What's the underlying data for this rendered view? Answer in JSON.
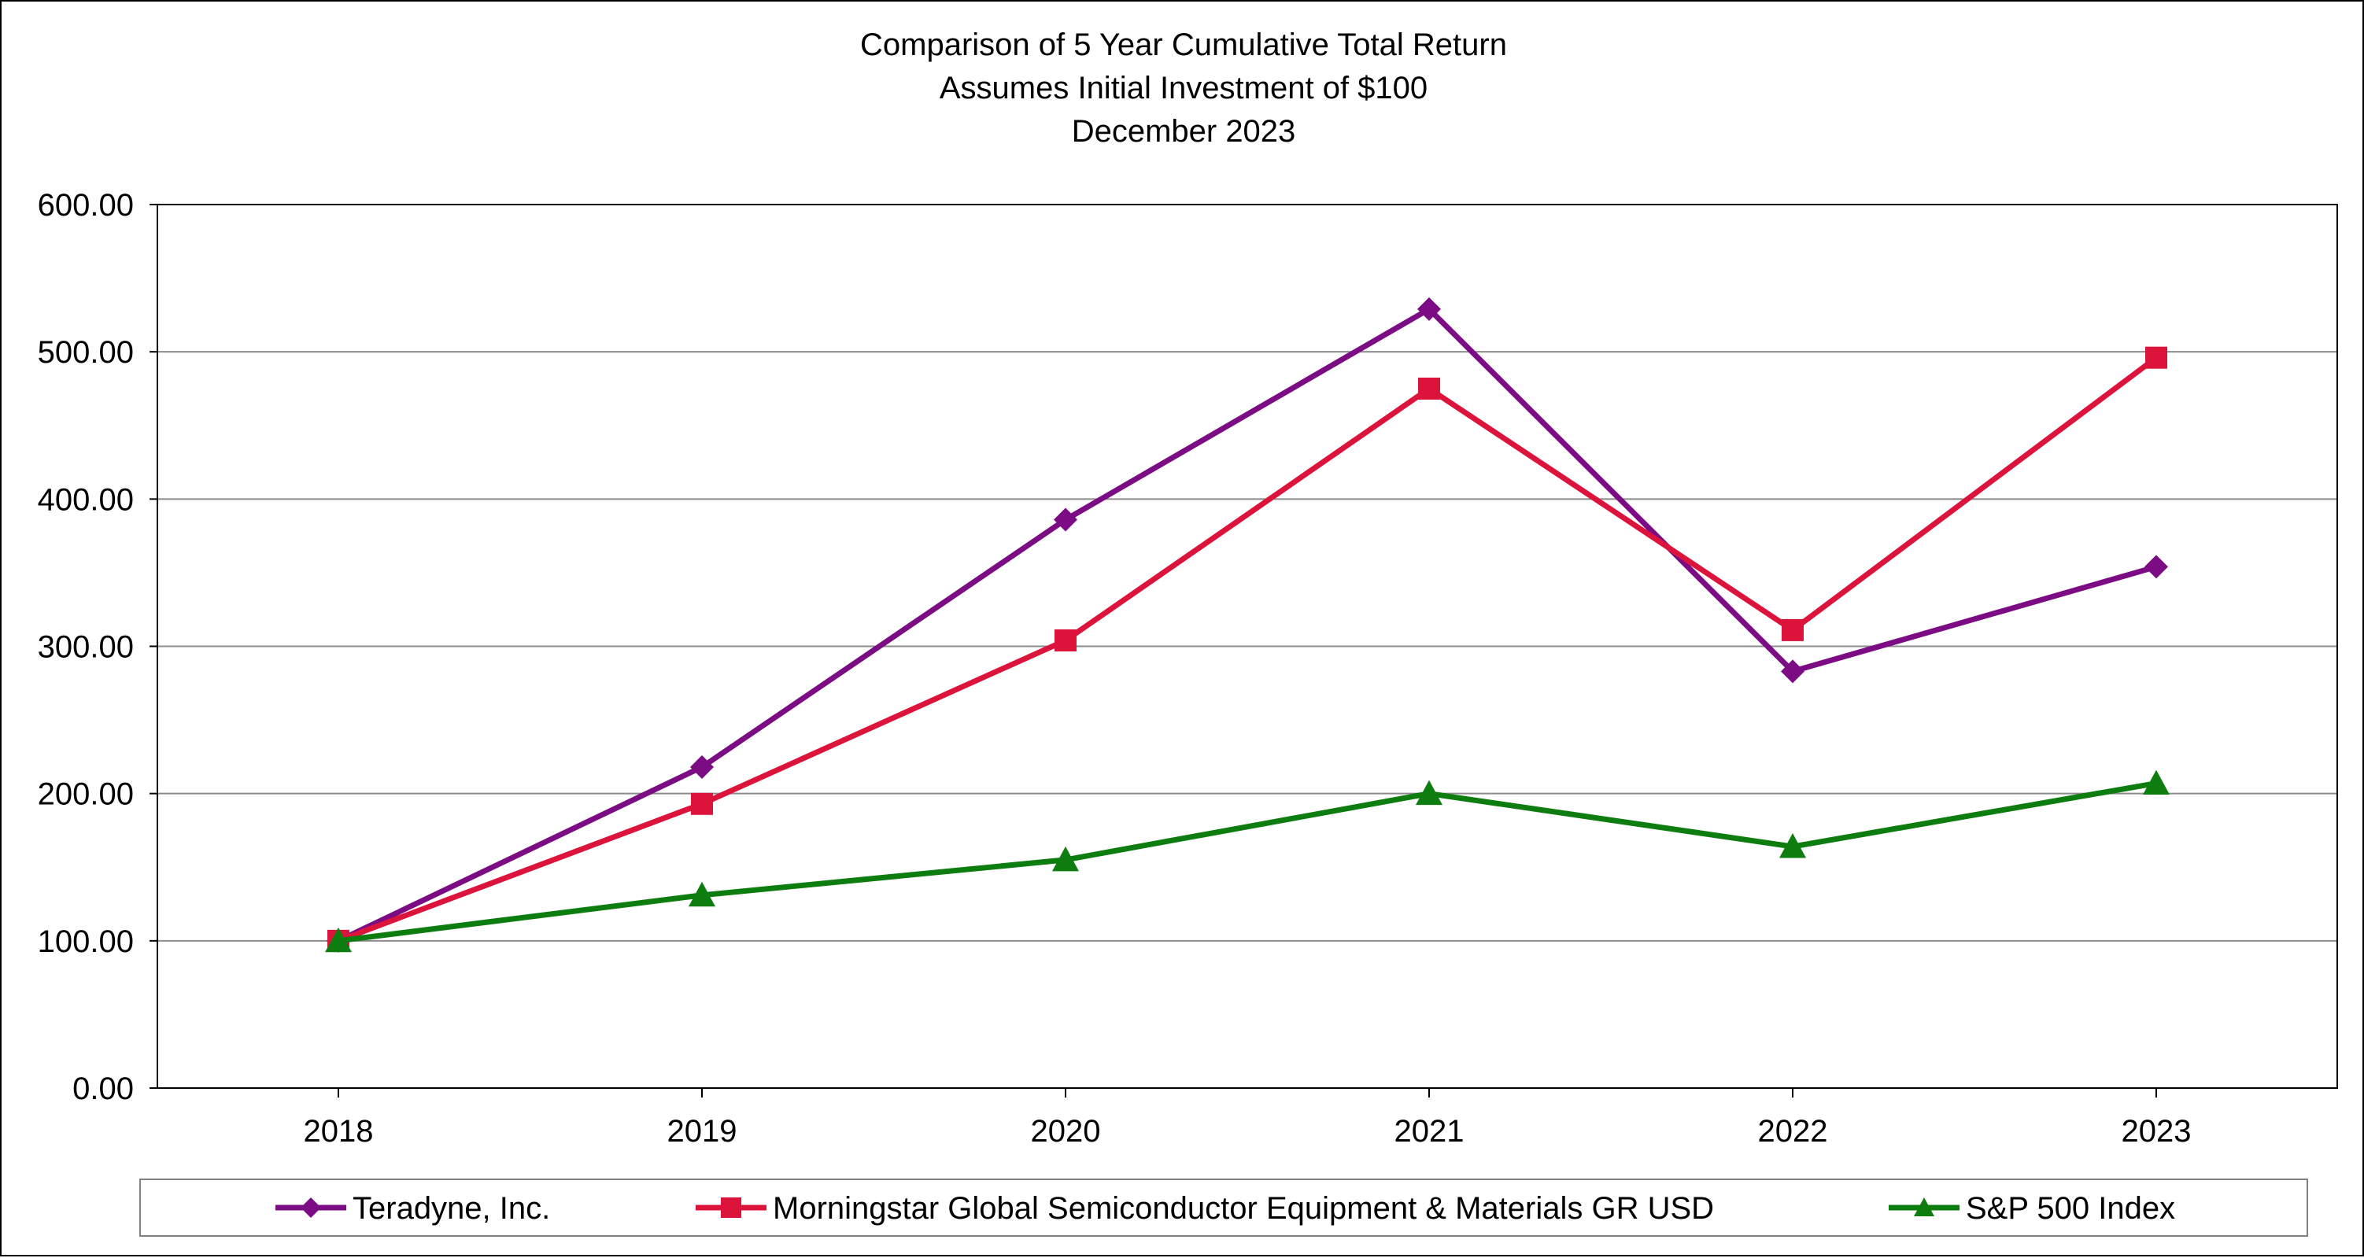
{
  "chart_data": {
    "type": "line",
    "title_lines": [
      "Comparison of 5 Year Cumulative Total Return",
      "Assumes Initial Investment of $100",
      "December 2023"
    ],
    "xlabel": "",
    "ylabel": "",
    "categories": [
      "2018",
      "2019",
      "2020",
      "2021",
      "2022",
      "2023"
    ],
    "ylim": [
      0,
      600
    ],
    "yticks": [
      0,
      100,
      200,
      300,
      400,
      500,
      600
    ],
    "ytick_labels": [
      "0.00",
      "100.00",
      "200.00",
      "300.00",
      "400.00",
      "500.00",
      "600.00"
    ],
    "grid": true,
    "legend_position": "bottom",
    "series": [
      {
        "name": "Teradyne, Inc.",
        "color": "#7B0C83",
        "marker": "diamond",
        "values": [
          100,
          218,
          386,
          529,
          283,
          354
        ]
      },
      {
        "name": "Morningstar Global Semiconductor Equipment & Materials GR USD",
        "color": "#DC143C",
        "marker": "square",
        "values": [
          100,
          193,
          304,
          475,
          311,
          496
        ]
      },
      {
        "name": "S&P 500 Index",
        "color": "#0E7D10",
        "marker": "triangle",
        "values": [
          100,
          131,
          155,
          200,
          164,
          207
        ]
      }
    ]
  }
}
